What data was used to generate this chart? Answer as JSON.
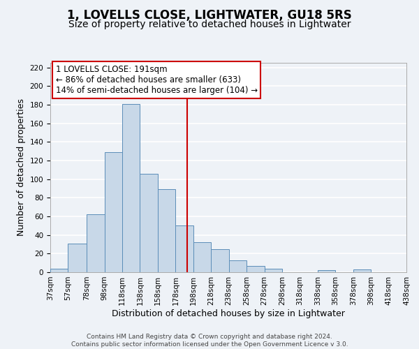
{
  "title": "1, LOVELLS CLOSE, LIGHTWATER, GU18 5RS",
  "subtitle": "Size of property relative to detached houses in Lightwater",
  "xlabel": "Distribution of detached houses by size in Lightwater",
  "ylabel": "Number of detached properties",
  "bar_left_edges": [
    37,
    57,
    78,
    98,
    118,
    138,
    158,
    178,
    198,
    218,
    238,
    258,
    278,
    298,
    318,
    338,
    358,
    378,
    398,
    418
  ],
  "bar_widths": [
    20,
    21,
    20,
    20,
    20,
    20,
    20,
    20,
    20,
    20,
    20,
    20,
    20,
    20,
    20,
    20,
    20,
    20,
    20,
    20
  ],
  "bar_heights": [
    4,
    31,
    62,
    129,
    181,
    106,
    89,
    50,
    32,
    25,
    13,
    7,
    4,
    0,
    0,
    2,
    0,
    3,
    0,
    0
  ],
  "bar_facecolor": "#c8d8e8",
  "bar_edgecolor": "#5b8db8",
  "tick_labels": [
    "37sqm",
    "57sqm",
    "78sqm",
    "98sqm",
    "118sqm",
    "138sqm",
    "158sqm",
    "178sqm",
    "198sqm",
    "218sqm",
    "238sqm",
    "258sqm",
    "278sqm",
    "298sqm",
    "318sqm",
    "338sqm",
    "358sqm",
    "378sqm",
    "398sqm",
    "418sqm",
    "438sqm"
  ],
  "vline_x": 191,
  "vline_color": "#cc0000",
  "annotation_box_text": "1 LOVELLS CLOSE: 191sqm\n← 86% of detached houses are smaller (633)\n14% of semi-detached houses are larger (104) →",
  "box_edgecolor": "#cc0000",
  "ylim": [
    0,
    225
  ],
  "yticks": [
    0,
    20,
    40,
    60,
    80,
    100,
    120,
    140,
    160,
    180,
    200,
    220
  ],
  "xlim_left": 37,
  "xlim_right": 438,
  "background_color": "#eef2f7",
  "grid_color": "#ffffff",
  "footer_text": "Contains HM Land Registry data © Crown copyright and database right 2024.\nContains public sector information licensed under the Open Government Licence v 3.0.",
  "title_fontsize": 12,
  "subtitle_fontsize": 10,
  "xlabel_fontsize": 9,
  "ylabel_fontsize": 9,
  "tick_fontsize": 7.5,
  "annotation_fontsize": 8.5,
  "footer_fontsize": 6.5
}
